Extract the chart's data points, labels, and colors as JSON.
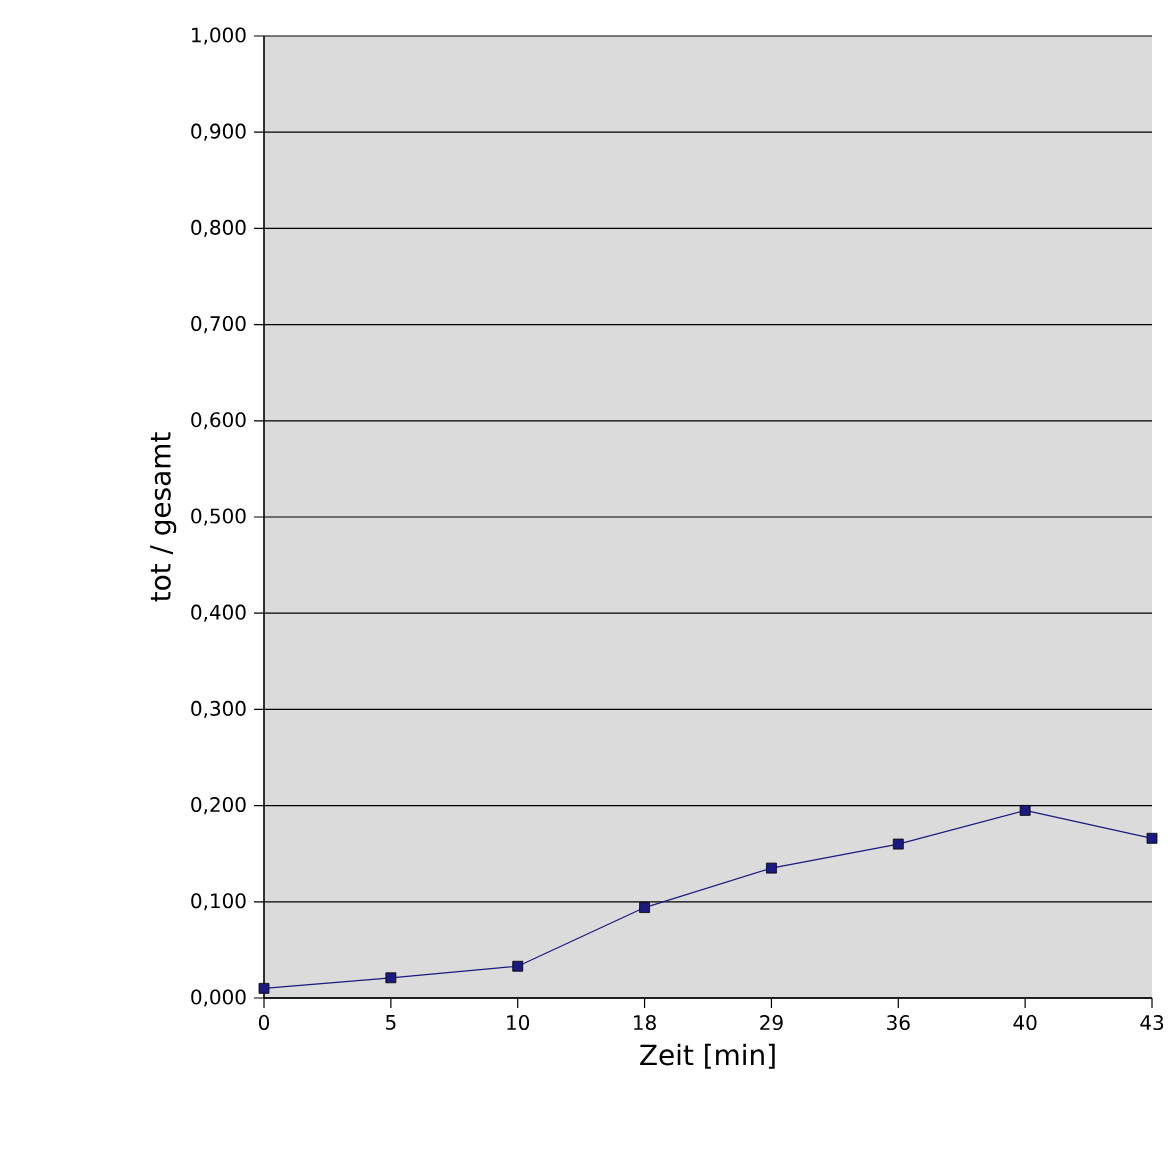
{
  "chart_data": {
    "type": "line",
    "xlabel": "Zeit [min]",
    "ylabel": "tot / gesamt",
    "categories": [
      "0",
      "5",
      "10",
      "18",
      "29",
      "36",
      "40",
      "43"
    ],
    "series": [
      {
        "color": "#1a1a80",
        "values": [
          0.01,
          0.021,
          0.033,
          0.094,
          0.135,
          0.16,
          0.195,
          0.166
        ]
      }
    ],
    "ylim": [
      0,
      1
    ],
    "yticks": [
      {
        "value": 0,
        "label": "0,000"
      },
      {
        "value": 0.1,
        "label": "0,100"
      },
      {
        "value": 0.2,
        "label": "0,200"
      },
      {
        "value": 0.3,
        "label": "0,300"
      },
      {
        "value": 0.4,
        "label": "0,400"
      },
      {
        "value": 0.5,
        "label": "0,500"
      },
      {
        "value": 0.6,
        "label": "0,600"
      },
      {
        "value": 0.7,
        "label": "0,700"
      },
      {
        "value": 0.8,
        "label": "0,800"
      },
      {
        "value": 0.9,
        "label": "0,900"
      },
      {
        "value": 1,
        "label": "1,000"
      }
    ],
    "grid": "y",
    "marker": "square",
    "line_style": "solid"
  }
}
